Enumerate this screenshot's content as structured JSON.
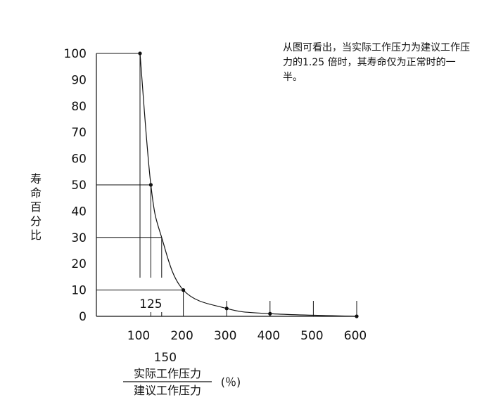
{
  "chart_data": {
    "type": "line",
    "title": "",
    "ylabel": "寿命百分比",
    "xlabel_numerator": "实际工作压力",
    "xlabel_denominator": "建议工作压力",
    "xlabel_unit": "(％)",
    "xlim": [
      100,
      600
    ],
    "ylim": [
      0,
      100
    ],
    "x_ticks": [
      "100",
      "200",
      "300",
      "400",
      "500",
      "600"
    ],
    "x_tick_values": [
      100,
      200,
      300,
      400,
      500,
      600
    ],
    "y_ticks": [
      "0",
      "10",
      "20",
      "30",
      "40",
      "50",
      "60",
      "70",
      "80",
      "90",
      "100"
    ],
    "y_tick_values": [
      0,
      10,
      20,
      30,
      40,
      50,
      60,
      70,
      80,
      90,
      100
    ],
    "series": [
      {
        "x": [
          100,
          125,
          150,
          200,
          300,
          400,
          600
        ],
        "y": [
          100,
          50,
          30,
          10,
          3,
          1,
          0
        ]
      }
    ],
    "marked_points": [
      {
        "x": 100,
        "y": 100
      },
      {
        "x": 125,
        "y": 50
      },
      {
        "x": 200,
        "y": 10
      },
      {
        "x": 300,
        "y": 3
      },
      {
        "x": 400,
        "y": 1
      },
      {
        "x": 600,
        "y": 0
      }
    ],
    "reference_lines": [
      {
        "x": 100,
        "y": 100
      },
      {
        "x": 125,
        "y": 50
      },
      {
        "x": 150,
        "y": 30
      },
      {
        "x": 200,
        "y": 10
      }
    ],
    "annotations": [
      {
        "text": "125",
        "x": 125
      },
      {
        "text": "150",
        "x": 150
      }
    ],
    "grid": false
  },
  "note": "从图可看出，当实际工作压力为建议工作压力的1.25 倍时，其寿命仅为正常时的一半。"
}
